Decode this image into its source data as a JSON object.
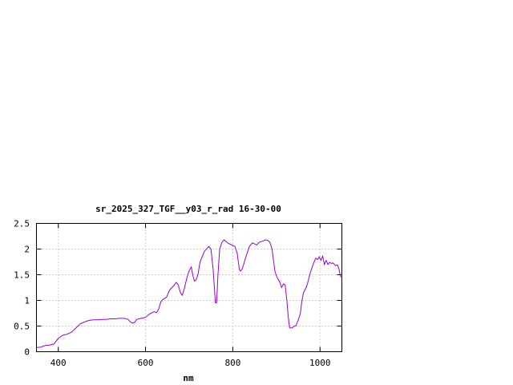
{
  "chart_data": {
    "type": "line",
    "title": "sr_2025_327_TGF__y03_r_rad 16-30-00",
    "xlabel": "nm",
    "ylabel": "",
    "xlim": [
      350,
      1050
    ],
    "ylim": [
      0,
      2.5
    ],
    "x_ticks": [
      400,
      600,
      800,
      1000
    ],
    "x_tick_labels": [
      "400",
      "600",
      "800",
      "1000"
    ],
    "y_ticks": [
      0,
      0.5,
      1,
      1.5,
      2,
      2.5
    ],
    "y_tick_labels": [
      "0",
      "0.5",
      "1",
      "1.5",
      "2",
      "2.5"
    ],
    "grid": true,
    "legend": "none",
    "series_color": "#9400d3",
    "series": [
      {
        "points": [
          [
            350,
            0.08
          ],
          [
            360,
            0.09
          ],
          [
            370,
            0.12
          ],
          [
            380,
            0.13
          ],
          [
            390,
            0.15
          ],
          [
            400,
            0.26
          ],
          [
            410,
            0.32
          ],
          [
            420,
            0.34
          ],
          [
            430,
            0.38
          ],
          [
            440,
            0.46
          ],
          [
            450,
            0.54
          ],
          [
            460,
            0.58
          ],
          [
            470,
            0.61
          ],
          [
            480,
            0.62
          ],
          [
            490,
            0.62
          ],
          [
            500,
            0.63
          ],
          [
            510,
            0.63
          ],
          [
            520,
            0.64
          ],
          [
            530,
            0.64
          ],
          [
            540,
            0.65
          ],
          [
            550,
            0.65
          ],
          [
            560,
            0.63
          ],
          [
            565,
            0.58
          ],
          [
            570,
            0.56
          ],
          [
            575,
            0.57
          ],
          [
            580,
            0.63
          ],
          [
            590,
            0.65
          ],
          [
            600,
            0.67
          ],
          [
            610,
            0.74
          ],
          [
            620,
            0.78
          ],
          [
            625,
            0.76
          ],
          [
            630,
            0.83
          ],
          [
            635,
            0.97
          ],
          [
            640,
            1.02
          ],
          [
            648,
            1.06
          ],
          [
            655,
            1.2
          ],
          [
            665,
            1.29
          ],
          [
            670,
            1.35
          ],
          [
            675,
            1.3
          ],
          [
            680,
            1.15
          ],
          [
            684,
            1.1
          ],
          [
            688,
            1.2
          ],
          [
            695,
            1.45
          ],
          [
            700,
            1.58
          ],
          [
            705,
            1.65
          ],
          [
            708,
            1.5
          ],
          [
            712,
            1.38
          ],
          [
            716,
            1.4
          ],
          [
            720,
            1.5
          ],
          [
            725,
            1.75
          ],
          [
            735,
            1.96
          ],
          [
            745,
            2.05
          ],
          [
            750,
            2.0
          ],
          [
            755,
            1.6
          ],
          [
            758,
            1.22
          ],
          [
            760,
            0.95
          ],
          [
            763,
            0.96
          ],
          [
            766,
            1.5
          ],
          [
            770,
            2.0
          ],
          [
            775,
            2.13
          ],
          [
            780,
            2.18
          ],
          [
            790,
            2.11
          ],
          [
            800,
            2.07
          ],
          [
            805,
            2.05
          ],
          [
            810,
            1.92
          ],
          [
            815,
            1.6
          ],
          [
            818,
            1.57
          ],
          [
            822,
            1.62
          ],
          [
            830,
            1.85
          ],
          [
            838,
            2.05
          ],
          [
            845,
            2.12
          ],
          [
            850,
            2.1
          ],
          [
            855,
            2.08
          ],
          [
            860,
            2.13
          ],
          [
            870,
            2.16
          ],
          [
            875,
            2.18
          ],
          [
            880,
            2.17
          ],
          [
            885,
            2.13
          ],
          [
            890,
            2.0
          ],
          [
            893,
            1.8
          ],
          [
            897,
            1.55
          ],
          [
            902,
            1.44
          ],
          [
            908,
            1.35
          ],
          [
            912,
            1.25
          ],
          [
            916,
            1.32
          ],
          [
            920,
            1.3
          ],
          [
            924,
            1.0
          ],
          [
            927,
            0.68
          ],
          [
            930,
            0.47
          ],
          [
            935,
            0.46
          ],
          [
            940,
            0.49
          ],
          [
            945,
            0.51
          ],
          [
            950,
            0.62
          ],
          [
            955,
            0.75
          ],
          [
            958,
            0.97
          ],
          [
            962,
            1.15
          ],
          [
            968,
            1.25
          ],
          [
            972,
            1.35
          ],
          [
            978,
            1.55
          ],
          [
            985,
            1.72
          ],
          [
            990,
            1.82
          ],
          [
            995,
            1.8
          ],
          [
            998,
            1.85
          ],
          [
            1002,
            1.78
          ],
          [
            1006,
            1.86
          ],
          [
            1010,
            1.7
          ],
          [
            1014,
            1.78
          ],
          [
            1018,
            1.7
          ],
          [
            1022,
            1.74
          ],
          [
            1026,
            1.72
          ],
          [
            1030,
            1.73
          ],
          [
            1035,
            1.68
          ],
          [
            1040,
            1.69
          ],
          [
            1043,
            1.62
          ],
          [
            1046,
            1.5
          ],
          [
            1048,
            1.45
          ]
        ]
      }
    ]
  }
}
